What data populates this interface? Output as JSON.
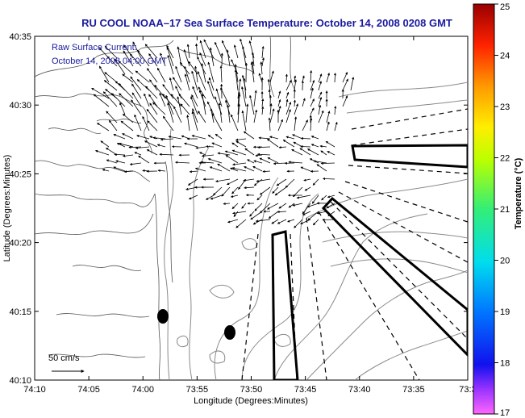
{
  "title": "RU COOL  NOAA–17  Sea Surface Temperature:  October 14, 2008 0208 GMT",
  "current_note": {
    "line1": "Raw Surface Current:",
    "line2": "October 14, 2008 04:00 GMT"
  },
  "scale_label": "50 cm/s",
  "x_axis": {
    "label": "Longitude (Degrees:Minutes)",
    "ticks": [
      "74:10",
      "74:05",
      "74:00",
      "73:55",
      "73:50",
      "73:45",
      "73:40",
      "73:35",
      "73:3"
    ]
  },
  "y_axis": {
    "label": "Latitude (Degrees:Minutes)",
    "ticks": [
      "40:35",
      "40:30",
      "40:25",
      "40:20",
      "40:15",
      "40:10"
    ]
  },
  "colorbar": {
    "label": "Temperature (°C)",
    "ticks": [
      "25",
      "24",
      "23",
      "22",
      "21",
      "20",
      "19",
      "18",
      "17"
    ],
    "min": 17,
    "max": 25
  },
  "colors": {
    "title": "#1a1aa0",
    "land_line": "#000000",
    "contour": "#888888",
    "arrow": "#000000"
  }
}
